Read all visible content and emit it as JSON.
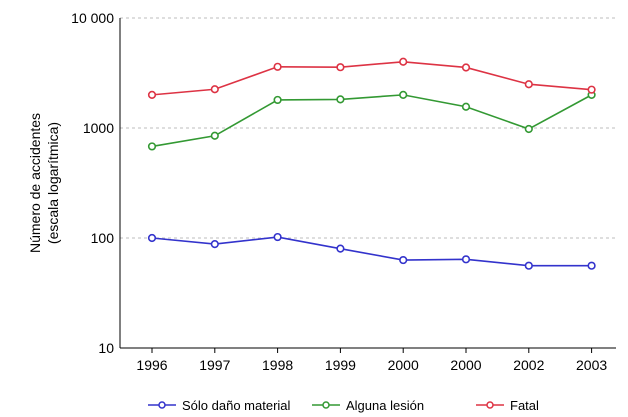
{
  "chart_data": {
    "type": "line",
    "ylabel_lines": [
      "Número de accidentes",
      "(escala logarítmica)"
    ],
    "yscale": "log",
    "ylim": [
      10,
      10000
    ],
    "yticks": [
      10,
      100,
      1000,
      10000
    ],
    "ytick_labels": [
      "10",
      "100",
      "1000",
      "10 000"
    ],
    "categories": [
      "1996",
      "1997",
      "1998",
      "1999",
      "2000",
      "2000",
      "2002",
      "2003"
    ],
    "grid": "horizontal dashed",
    "legend_position": "bottom",
    "series": [
      {
        "name": "Sólo daño material",
        "color": "#3333cc",
        "values": [
          100,
          88,
          102,
          80,
          63,
          64,
          56,
          56
        ]
      },
      {
        "name": "Alguna lesión",
        "color": "#339933",
        "values": [
          680,
          850,
          1800,
          1820,
          2000,
          1560,
          980,
          2000
        ]
      },
      {
        "name": "Fatal",
        "color": "#dd3344",
        "values": [
          2000,
          2250,
          3600,
          3570,
          4000,
          3550,
          2500,
          2230
        ]
      }
    ]
  }
}
